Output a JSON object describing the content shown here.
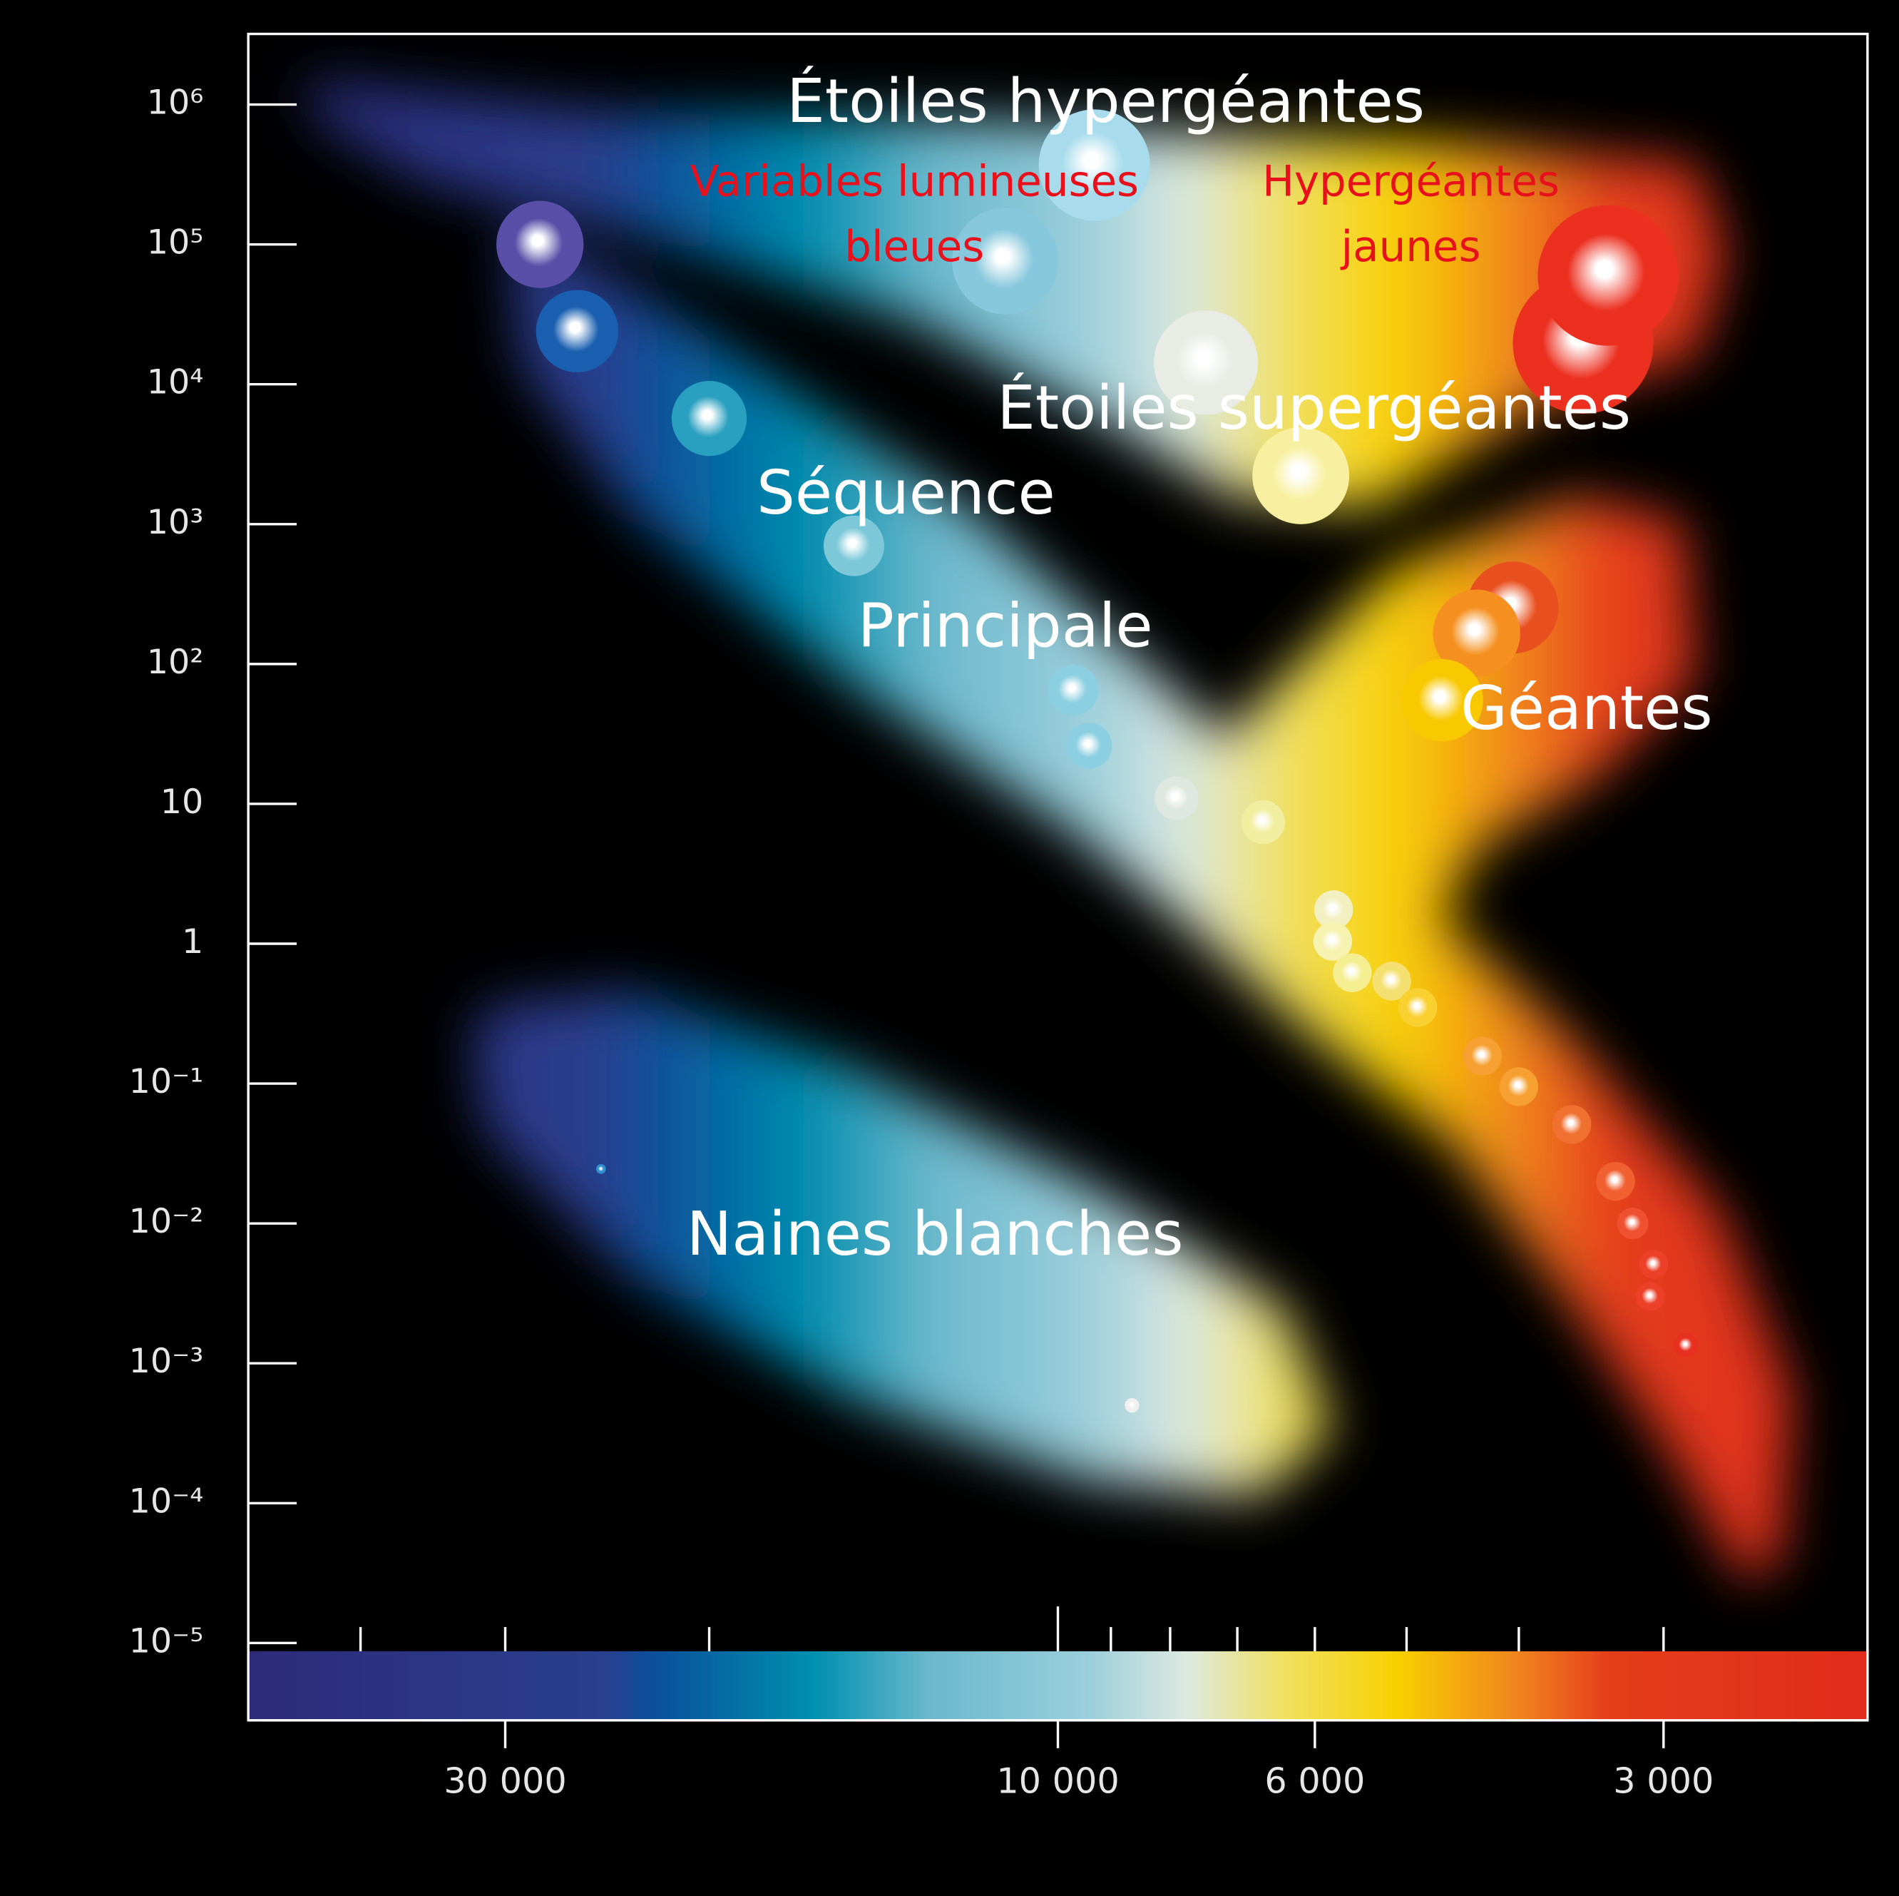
{
  "chart_data": {
    "type": "scatter",
    "x_log": true,
    "y_log": true,
    "xlim": [
      50000,
      2000
    ],
    "ylim": [
      2.8e-06,
      3200000
    ],
    "xticks": [
      {
        "value": 30000,
        "label": "30 000"
      },
      {
        "value": 10000,
        "label": "10 000"
      },
      {
        "value": 6000,
        "label": "6 000"
      },
      {
        "value": 3000,
        "label": "3 000"
      }
    ],
    "x_minor_ticks": [
      40000,
      20000,
      9000,
      8000,
      7000,
      5000,
      4000
    ],
    "yticks": [
      {
        "value": 1000000,
        "label": "10⁶"
      },
      {
        "value": 100000,
        "label": "10⁵"
      },
      {
        "value": 10000,
        "label": "10⁴"
      },
      {
        "value": 1000,
        "label": "10³"
      },
      {
        "value": 100,
        "label": "10²"
      },
      10,
      1,
      {
        "value": 0.1,
        "label": "10⁻¹"
      },
      {
        "value": 0.01,
        "label": "10⁻²"
      },
      {
        "value": 0.001,
        "label": "10⁻³"
      },
      {
        "value": 0.0001,
        "label": "10⁻⁴"
      },
      {
        "value": 1e-05,
        "label": "10⁻⁵"
      }
    ],
    "x": [
      28000,
      26000,
      20000,
      15000,
      9700,
      9400,
      7900,
      6650,
      5780,
      5790,
      5570,
      5150,
      4890,
      4300,
      4000,
      3600,
      3300,
      3190,
      3060,
      3080,
      2870,
      24800,
      8630,
      9300,
      11100,
      7450,
      6170,
      3520,
      3350,
      4050,
      4350,
      4660
    ],
    "series": [
      {
        "values": [
          100000,
          24000,
          5700,
          700,
          65,
          26,
          11,
          7.4,
          1.75,
          1.04,
          0.62,
          0.54,
          0.35,
          0.157,
          0.095,
          0.051,
          0.02,
          0.01,
          0.0051,
          0.003,
          0.00135,
          0.0245,
          0.0005,
          369000,
          76000,
          14300,
          2220,
          19600,
          60000,
          253,
          166,
          55
        ],
        "sizes": [
          36,
          34,
          31,
          25,
          21,
          19,
          18,
          18,
          16,
          16,
          16,
          16,
          16,
          16,
          16,
          16,
          16,
          13,
          12,
          12,
          10,
          4,
          6,
          46,
          44,
          43,
          40,
          58,
          58,
          38,
          36,
          34
        ],
        "colors": [
          "#5a4fa8",
          "#1a5fb0",
          "#2aa0c0",
          "#7cc8d8",
          "#8ccfe0",
          "#8ccfe0",
          "#dfe8e0",
          "#f2eea0",
          "#f2f0c0",
          "#f6f2b0",
          "#f4ee90",
          "#f4e070",
          "#f8d030",
          "#f5a030",
          "#f5a030",
          "#f07030",
          "#f06030",
          "#ef5030",
          "#ec4028",
          "#ec4028",
          "#e83020",
          "#3090d0",
          "#f0f0f0",
          "#a8dcec",
          "#88c8dc",
          "#e8ece4",
          "#f8f0a0",
          "#ec3020",
          "#ec3020",
          "#e85020",
          "#f59020",
          "#f8c800"
        ]
      }
    ],
    "annotations": [
      {
        "text": "Étoiles hypergéantes",
        "color": "#ffffff"
      },
      {
        "text": "Variables lumineuses",
        "color": "#e8101a"
      },
      {
        "text": "bleues",
        "color": "#e8101a"
      },
      {
        "text": "Hypergéantes",
        "color": "#e8101a"
      },
      {
        "text": "jaunes",
        "color": "#e8101a"
      },
      {
        "text": "Étoiles supergéantes",
        "color": "#ffffff"
      },
      {
        "text": "Séquence",
        "color": "#ffffff"
      },
      {
        "text": "Principale",
        "color": "#ffffff"
      },
      {
        "text": "Géantes",
        "color": "#ffffff"
      },
      {
        "text": "Naines blanches",
        "color": "#ffffff"
      }
    ]
  }
}
